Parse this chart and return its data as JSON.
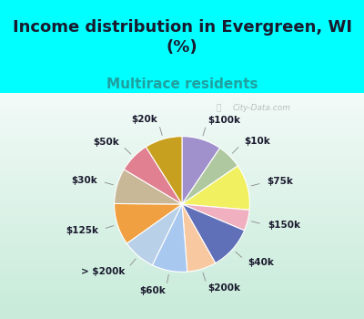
{
  "title": "Income distribution in Evergreen, WI\n(%)",
  "subtitle": "Multirace residents",
  "labels": [
    "$100k",
    "$10k",
    "$75k",
    "$150k",
    "$40k",
    "$200k",
    "$60k",
    "> $200k",
    "$125k",
    "$30k",
    "$50k",
    "$20k"
  ],
  "values": [
    9.5,
    6.0,
    11.0,
    5.0,
    10.5,
    7.0,
    8.5,
    8.0,
    10.0,
    8.5,
    7.5,
    9.0
  ],
  "colors": [
    "#a090cc",
    "#b0c8a0",
    "#f0f060",
    "#f0b0c0",
    "#6070b8",
    "#f8c8a0",
    "#a8c8f0",
    "#b8d0e8",
    "#f0a040",
    "#c8b898",
    "#e08090",
    "#c8a020"
  ],
  "background_top": "#00ffff",
  "background_chart_left": "#c8e8d8",
  "background_chart_right": "#f0f8f0",
  "title_fontsize": 13,
  "subtitle_color": "#20a0a0",
  "subtitle_fontsize": 11,
  "label_fontsize": 7.5,
  "watermark": "City-Data.com"
}
